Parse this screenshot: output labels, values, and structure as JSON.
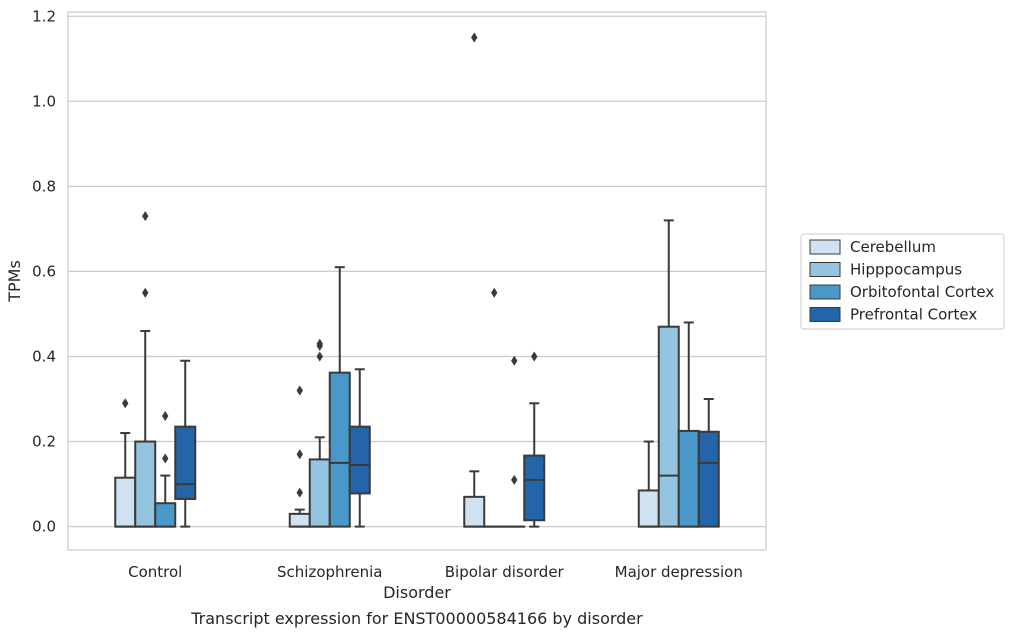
{
  "chart_data": {
    "type": "box",
    "xlabel": "Disorder",
    "ylabel": "TPMs",
    "caption": "Transcript expression for ENST00000584166 by disorder",
    "ylim": [
      -0.055,
      1.21
    ],
    "yticks": [
      0.0,
      0.2,
      0.4,
      0.6,
      0.8,
      1.0,
      1.2
    ],
    "ytick_labels": [
      "0.0",
      "0.2",
      "0.4",
      "0.6",
      "0.8",
      "1.0",
      "1.2"
    ],
    "grid": "horizontal",
    "legend_position": "right",
    "categories": [
      "Control",
      "Schizophrenia",
      "Bipolar disorder",
      "Major depression"
    ],
    "series": [
      {
        "name": "Cerebellum",
        "color": "#d0e1f2",
        "boxes": [
          {
            "whisker_low": 0.0,
            "q1": 0.0,
            "median": 0.0,
            "q3": 0.115,
            "whisker_high": 0.22,
            "outliers": [
              0.29
            ]
          },
          {
            "whisker_low": 0.0,
            "q1": 0.0,
            "median": 0.0,
            "q3": 0.03,
            "whisker_high": 0.04,
            "outliers": [
              0.08,
              0.17,
              0.32
            ]
          },
          {
            "whisker_low": 0.0,
            "q1": 0.0,
            "median": 0.0,
            "q3": 0.07,
            "whisker_high": 0.13,
            "outliers": [
              1.15
            ]
          },
          {
            "whisker_low": 0.0,
            "q1": 0.0,
            "median": 0.0,
            "q3": 0.085,
            "whisker_high": 0.2,
            "outliers": []
          }
        ]
      },
      {
        "name": "Hipppocampus",
        "color": "#94c4df",
        "boxes": [
          {
            "whisker_low": 0.0,
            "q1": 0.0,
            "median": 0.0,
            "q3": 0.2,
            "whisker_high": 0.46,
            "outliers": [
              0.55,
              0.73
            ]
          },
          {
            "whisker_low": 0.0,
            "q1": 0.0,
            "median": 0.0,
            "q3": 0.158,
            "whisker_high": 0.21,
            "outliers": [
              0.4,
              0.425,
              0.43
            ]
          },
          {
            "whisker_low": 0.0,
            "q1": 0.0,
            "median": 0.0,
            "q3": 0.0,
            "whisker_high": 0.0,
            "outliers": [
              0.55
            ]
          },
          {
            "whisker_low": 0.0,
            "q1": 0.0,
            "median": 0.12,
            "q3": 0.47,
            "whisker_high": 0.72,
            "outliers": []
          }
        ]
      },
      {
        "name": "Orbitofontal Cortex",
        "color": "#4a98c9",
        "boxes": [
          {
            "whisker_low": 0.0,
            "q1": 0.0,
            "median": 0.0,
            "q3": 0.055,
            "whisker_high": 0.12,
            "outliers": [
              0.16,
              0.26
            ]
          },
          {
            "whisker_low": 0.0,
            "q1": 0.0,
            "median": 0.15,
            "q3": 0.362,
            "whisker_high": 0.61,
            "outliers": []
          },
          {
            "whisker_low": 0.0,
            "q1": 0.0,
            "median": 0.0,
            "q3": 0.0,
            "whisker_high": 0.0,
            "outliers": [
              0.11,
              0.39
            ]
          },
          {
            "whisker_low": 0.0,
            "q1": 0.0,
            "median": 0.0,
            "q3": 0.225,
            "whisker_high": 0.48,
            "outliers": []
          }
        ]
      },
      {
        "name": "Prefrontal Cortex",
        "color": "#2464a8",
        "boxes": [
          {
            "whisker_low": 0.0,
            "q1": 0.065,
            "median": 0.1,
            "q3": 0.235,
            "whisker_high": 0.39,
            "outliers": []
          },
          {
            "whisker_low": 0.0,
            "q1": 0.078,
            "median": 0.145,
            "q3": 0.235,
            "whisker_high": 0.37,
            "outliers": []
          },
          {
            "whisker_low": 0.0,
            "q1": 0.015,
            "median": 0.11,
            "q3": 0.167,
            "whisker_high": 0.29,
            "outliers": [
              0.4
            ]
          },
          {
            "whisker_low": 0.0,
            "q1": 0.0,
            "median": 0.15,
            "q3": 0.223,
            "whisker_high": 0.3,
            "outliers": []
          }
        ]
      }
    ]
  }
}
